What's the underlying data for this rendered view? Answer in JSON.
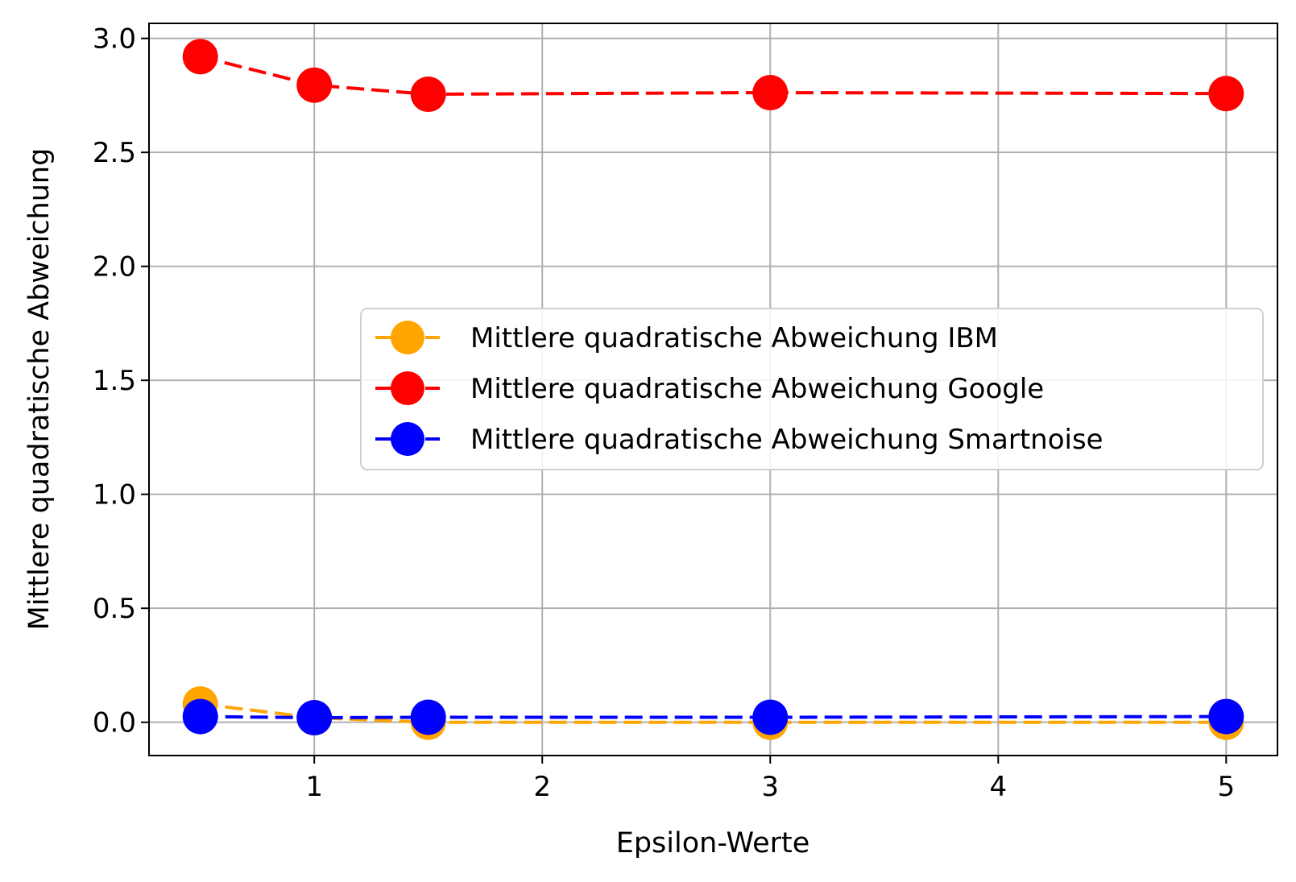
{
  "chart_data": {
    "type": "line",
    "xlabel": "Epsilon-Werte",
    "ylabel": "Mittlere quadratische Abweichung",
    "x": [
      0.5,
      1,
      1.5,
      3,
      5
    ],
    "xlim": [
      0.275,
      5.225
    ],
    "ylim": [
      -0.146,
      3.066
    ],
    "xticks": [
      1,
      2,
      3,
      4,
      5
    ],
    "xtick_labels": [
      "1",
      "2",
      "3",
      "4",
      "5"
    ],
    "yticks": [
      0.0,
      0.5,
      1.0,
      1.5,
      2.0,
      2.5,
      3.0
    ],
    "ytick_labels": [
      "0.0",
      "0.5",
      "1.0",
      "1.5",
      "2.0",
      "2.5",
      "3.0"
    ],
    "grid": true,
    "legend_position": "center-right",
    "series": [
      {
        "name": "Mittlere quadratische Abweichung IBM",
        "color": "#ffa500",
        "linestyle": "dashed",
        "marker": "circle",
        "values": [
          0.08,
          0.02,
          0.0,
          0.0,
          0.0
        ]
      },
      {
        "name": "Mittlere quadratische Abweichung Google",
        "color": "#ff0000",
        "linestyle": "dashed",
        "marker": "circle",
        "values": [
          2.92,
          2.795,
          2.755,
          2.762,
          2.758
        ]
      },
      {
        "name": "Mittlere quadratische Abweichung Smartnoise",
        "color": "#0000ff",
        "linestyle": "dashed",
        "marker": "circle",
        "values": [
          0.025,
          0.02,
          0.022,
          0.022,
          0.025
        ]
      }
    ]
  }
}
